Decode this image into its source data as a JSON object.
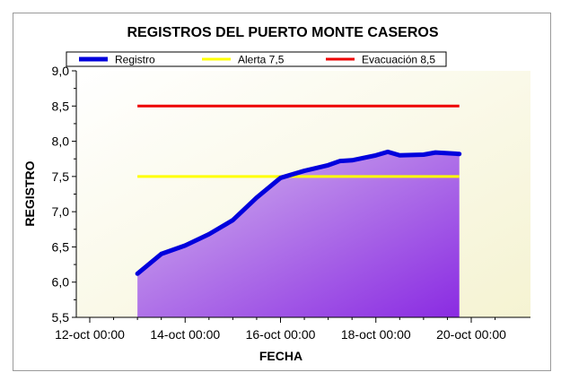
{
  "chart_data": {
    "type": "area",
    "title": "REGISTROS DEL PUERTO MONTE CASEROS",
    "xlabel": "FECHA",
    "ylabel": "REGISTRO",
    "x_ticks": [
      "12-oct 00:00",
      "14-oct 00:00",
      "16-oct 00:00",
      "18-oct 00:00",
      "20-oct 00:00"
    ],
    "y_ticks": [
      "5,5",
      "6,0",
      "6,5",
      "7,0",
      "7,5",
      "8,0",
      "8,5",
      "9,0"
    ],
    "ylim": [
      5.5,
      9.0
    ],
    "xlim_days": [
      12,
      20
    ],
    "legend_placement": "top",
    "series": [
      {
        "name": "Registro",
        "color": "#0000dd",
        "fill_top": "#d4b8ee",
        "fill_bottom": "#8a2be2",
        "points": [
          [
            "13-oct 00:00",
            6.12
          ],
          [
            "13-oct 12:00",
            6.4
          ],
          [
            "14-oct 00:00",
            6.52
          ],
          [
            "14-oct 12:00",
            6.68
          ],
          [
            "15-oct 00:00",
            6.88
          ],
          [
            "15-oct 12:00",
            7.2
          ],
          [
            "16-oct 00:00",
            7.48
          ],
          [
            "16-oct 12:00",
            7.58
          ],
          [
            "17-oct 00:00",
            7.66
          ],
          [
            "17-oct 06:00",
            7.72
          ],
          [
            "17-oct 12:00",
            7.73
          ],
          [
            "18-oct 00:00",
            7.8
          ],
          [
            "18-oct 06:00",
            7.85
          ],
          [
            "18-oct 12:00",
            7.8
          ],
          [
            "19-oct 00:00",
            7.81
          ],
          [
            "19-oct 06:00",
            7.84
          ],
          [
            "19-oct 12:00",
            7.83
          ],
          [
            "19-oct 18:00",
            7.82
          ]
        ]
      },
      {
        "name": "Alerta 7,5",
        "color": "#ffff00",
        "points": [
          [
            "13-oct 00:00",
            7.5
          ],
          [
            "19-oct 18:00",
            7.5
          ]
        ]
      },
      {
        "name": "Evacuación 8,5",
        "color": "#ee0000",
        "points": [
          [
            "13-oct 00:00",
            8.5
          ],
          [
            "19-oct 18:00",
            8.5
          ]
        ]
      }
    ]
  }
}
